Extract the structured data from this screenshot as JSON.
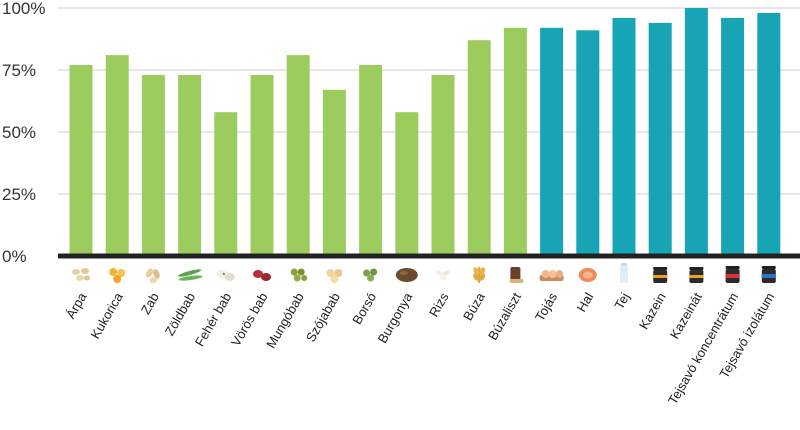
{
  "chart_data": {
    "type": "bar",
    "title": "",
    "xlabel": "",
    "ylabel": "",
    "ylim": [
      0,
      100
    ],
    "yticks": [
      "0%",
      "25%",
      "50%",
      "75%",
      "100%"
    ],
    "yticks_values": [
      0,
      25,
      50,
      75,
      100
    ],
    "grid": true,
    "legend": "none",
    "categories": [
      "Árpa",
      "Kukorica",
      "Zab",
      "Zöldbab",
      "Fehér bab",
      "Vörös bab",
      "Mungóbab",
      "Szójabab",
      "Borsó",
      "Burgonya",
      "Rizs",
      "Búza",
      "Búzaliszt",
      "Tojás",
      "Hal",
      "Tej",
      "Kazein",
      "Kazeinát",
      "Tejsavó koncentrátum",
      "Tejsavó izolátum"
    ],
    "values": [
      77,
      81,
      73,
      73,
      58,
      73,
      81,
      67,
      77,
      58,
      73,
      87,
      92,
      92,
      91,
      96,
      94,
      100,
      96,
      98
    ],
    "bar_groups": [
      "plant",
      "plant",
      "plant",
      "plant",
      "plant",
      "plant",
      "plant",
      "plant",
      "plant",
      "plant",
      "plant",
      "plant",
      "plant",
      "animal",
      "animal",
      "animal",
      "animal",
      "animal",
      "animal",
      "animal"
    ],
    "colors": {
      "plant": "#9ccc5e",
      "animal": "#17a5b5",
      "axis": "#222222",
      "grid": "#cfcfcf"
    },
    "icons": [
      "barley-icon",
      "corn-icon",
      "oats-icon",
      "green-bean-icon",
      "white-bean-icon",
      "red-bean-icon",
      "mung-bean-icon",
      "soybean-icon",
      "pea-icon",
      "potato-icon",
      "rice-icon",
      "wheat-icon",
      "flour-bag-icon",
      "eggs-icon",
      "fish-icon",
      "milk-icon",
      "casein-jar-icon",
      "caseinate-jar-icon",
      "whey-concentrate-jar-icon",
      "whey-isolate-jar-icon"
    ]
  }
}
